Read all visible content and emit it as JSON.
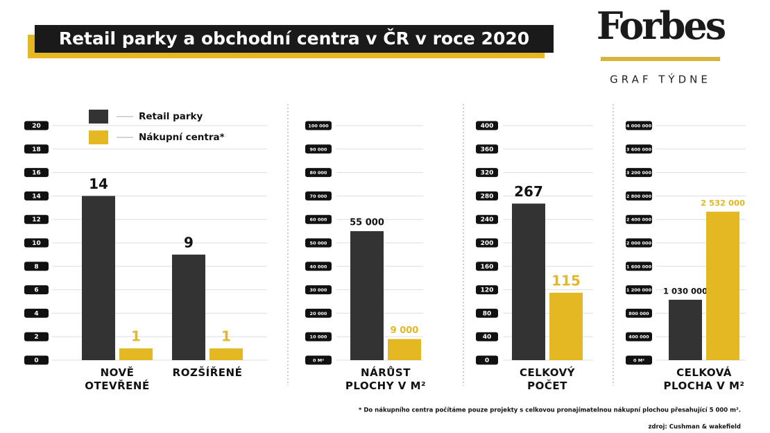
{
  "header": {
    "title": "Retail parky a obchodní centra v ČR v roce 2020",
    "brand": "Forbes",
    "subtitle": "GRAF TÝDNE"
  },
  "footnote": "* Do nákupního centra počítáme pouze projekty s celkovou pronajímatelnou nákupní plochou přesahující 5 000 m².",
  "source": "zdroj: Cushman & wakefield",
  "chart_data": [
    {
      "type": "bar",
      "categories": [
        "NOVĚ OTEVŘENÉ",
        "ROZŠÍŘENÉ"
      ],
      "series": [
        {
          "name": "Retail parky",
          "color": "#333333",
          "values": [
            14,
            9
          ]
        },
        {
          "name": "Nákupní centra*",
          "color": "#e3b823",
          "values": [
            1,
            1
          ]
        }
      ],
      "ylim": [
        0,
        20
      ],
      "yticks": [
        0,
        2,
        4,
        6,
        8,
        10,
        12,
        14,
        16,
        18,
        20
      ],
      "grid": true,
      "legend": "top"
    },
    {
      "type": "bar",
      "categories": [
        "NÁRŮST PLOCHY V M²"
      ],
      "series": [
        {
          "color": "#333333",
          "values": [
            55000
          ],
          "value_labels": [
            "55 000"
          ]
        },
        {
          "color": "#e3b823",
          "values": [
            9000
          ],
          "value_labels": [
            "9 000"
          ]
        }
      ],
      "ylim": [
        0,
        100000
      ],
      "yticks": [
        {
          "value": 0,
          "label": "0 M²"
        },
        {
          "value": 10000,
          "label": "10 000"
        },
        {
          "value": 20000,
          "label": "20 000"
        },
        {
          "value": 30000,
          "label": "30 000"
        },
        {
          "value": 40000,
          "label": "40 000"
        },
        {
          "value": 50000,
          "label": "50 000"
        },
        {
          "value": 60000,
          "label": "60 000"
        },
        {
          "value": 70000,
          "label": "70 000"
        },
        {
          "value": 80000,
          "label": "80 000"
        },
        {
          "value": 90000,
          "label": "90 000"
        },
        {
          "value": 100000,
          "label": "100 000"
        }
      ],
      "grid": true
    },
    {
      "type": "bar",
      "categories": [
        "CELKOVÝ POČET"
      ],
      "series": [
        {
          "color": "#333333",
          "values": [
            267
          ]
        },
        {
          "color": "#e3b823",
          "values": [
            115
          ]
        }
      ],
      "ylim": [
        0,
        400
      ],
      "yticks": [
        0,
        40,
        80,
        120,
        160,
        200,
        240,
        280,
        320,
        360,
        400
      ],
      "grid": true
    },
    {
      "type": "bar",
      "categories": [
        "CELKOVÁ PLOCHA V M²"
      ],
      "series": [
        {
          "color": "#333333",
          "values": [
            1030000
          ],
          "value_labels": [
            "1 030 000"
          ]
        },
        {
          "color": "#e3b823",
          "values": [
            2532000
          ],
          "value_labels": [
            "2 532 000"
          ]
        }
      ],
      "ylim": [
        0,
        4000000
      ],
      "yticks": [
        {
          "value": 0,
          "label": "0 M²"
        },
        {
          "value": 400000,
          "label": "400 000"
        },
        {
          "value": 800000,
          "label": "800 000"
        },
        {
          "value": 1200000,
          "label": "1 200 000"
        },
        {
          "value": 1600000,
          "label": "1 600 000"
        },
        {
          "value": 2000000,
          "label": "2 000 000"
        },
        {
          "value": 2400000,
          "label": "2 400 000"
        },
        {
          "value": 2800000,
          "label": "2 800 000"
        },
        {
          "value": 3200000,
          "label": "3 200 000"
        },
        {
          "value": 3600000,
          "label": "3 600 000"
        },
        {
          "value": 4000000,
          "label": "4 000 000"
        }
      ],
      "grid": true
    }
  ]
}
